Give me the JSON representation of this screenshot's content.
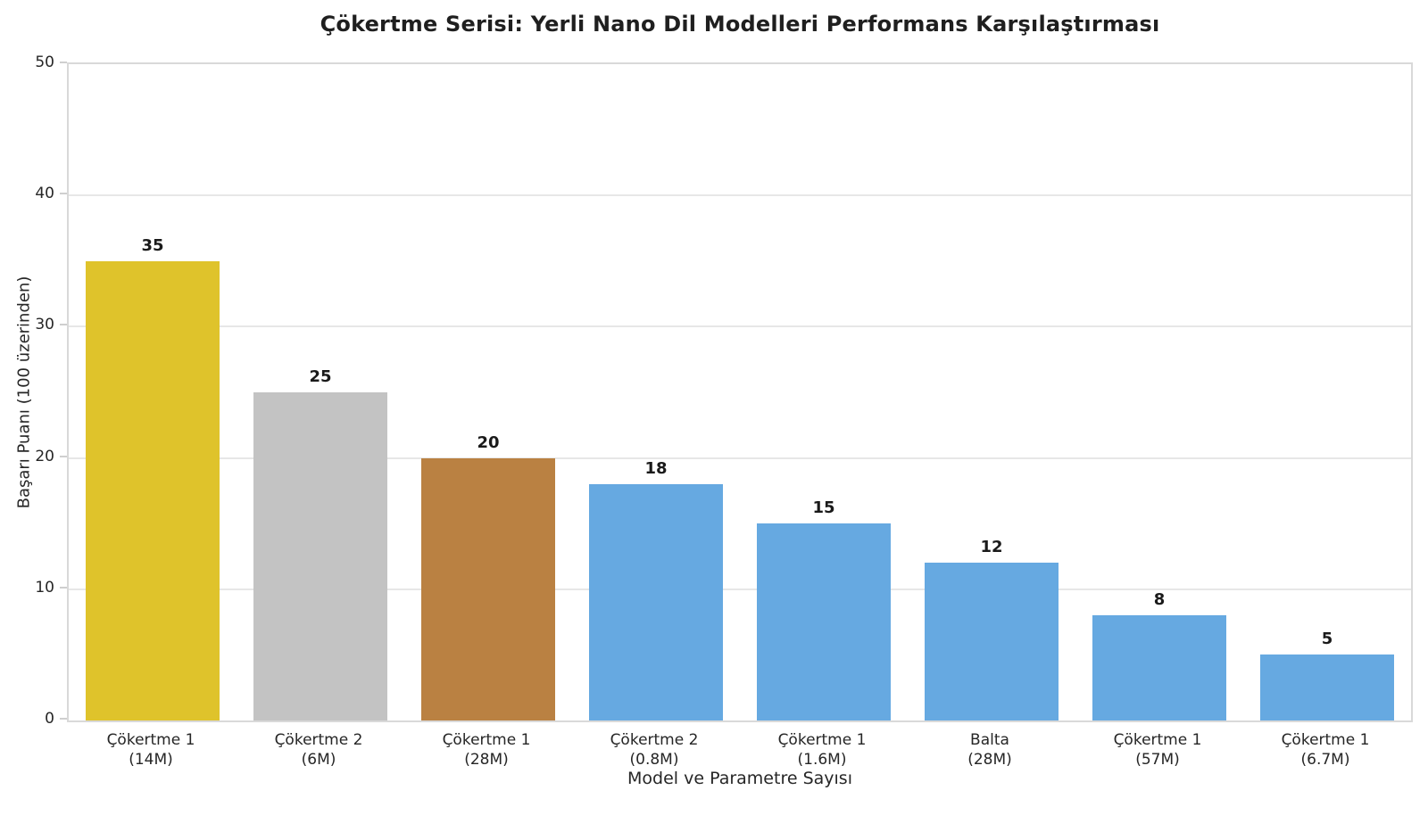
{
  "title": "Çökertme Serisi: Yerli Nano Dil Modelleri Performans Karşılaştırması",
  "chart_data": {
    "type": "bar",
    "title": "Çökertme Serisi: Yerli Nano Dil Modelleri Performans Karşılaştırması",
    "xlabel": "Model ve Parametre Sayısı",
    "ylabel": "Başarı Puanı (100 üzerinden)",
    "categories": [
      "Çökertme 1 (14M)",
      "Çökertme 2 (6M)",
      "Çökertme 1 (28M)",
      "Çökertme 2 (0.8M)",
      "Çökertme 1 (1.6M)",
      "Balta (28M)",
      "Çökertme 1 (57M)",
      "Çökertme 1 (6.7M)"
    ],
    "values": [
      35,
      25,
      20,
      18,
      15,
      12,
      8,
      5
    ],
    "bars": [
      {
        "model": "Çökertme 1",
        "params": "(14M)",
        "value": 35,
        "color": "#DFC32B"
      },
      {
        "model": "Çökertme 2",
        "params": "(6M)",
        "value": 25,
        "color": "#C3C3C3"
      },
      {
        "model": "Çökertme 1",
        "params": "(28M)",
        "value": 20,
        "color": "#BA8142"
      },
      {
        "model": "Çökertme 2",
        "params": "(0.8M)",
        "value": 18,
        "color": "#66A9E1"
      },
      {
        "model": "Çökertme 1",
        "params": "(1.6M)",
        "value": 15,
        "color": "#66A9E1"
      },
      {
        "model": "Balta",
        "params": "(28M)",
        "value": 12,
        "color": "#66A9E1"
      },
      {
        "model": "Çökertme 1",
        "params": "(57M)",
        "value": 8,
        "color": "#66A9E1"
      },
      {
        "model": "Çökertme 1",
        "params": "(6.7M)",
        "value": 5,
        "color": "#66A9E1"
      }
    ],
    "ylim": [
      0,
      50
    ],
    "yticks": [
      0,
      10,
      20,
      30,
      40,
      50
    ],
    "grid": "horizontal",
    "legend": false,
    "value_labels": true,
    "bar_width_fraction": 0.8,
    "colors": {
      "gold": "#DFC32B",
      "silver": "#C3C3C3",
      "bronze": "#BA8142",
      "blue": "#66A9E1",
      "spine": "#d9d9d9",
      "gridline": "#e7e7e7",
      "text": "#262626"
    }
  }
}
